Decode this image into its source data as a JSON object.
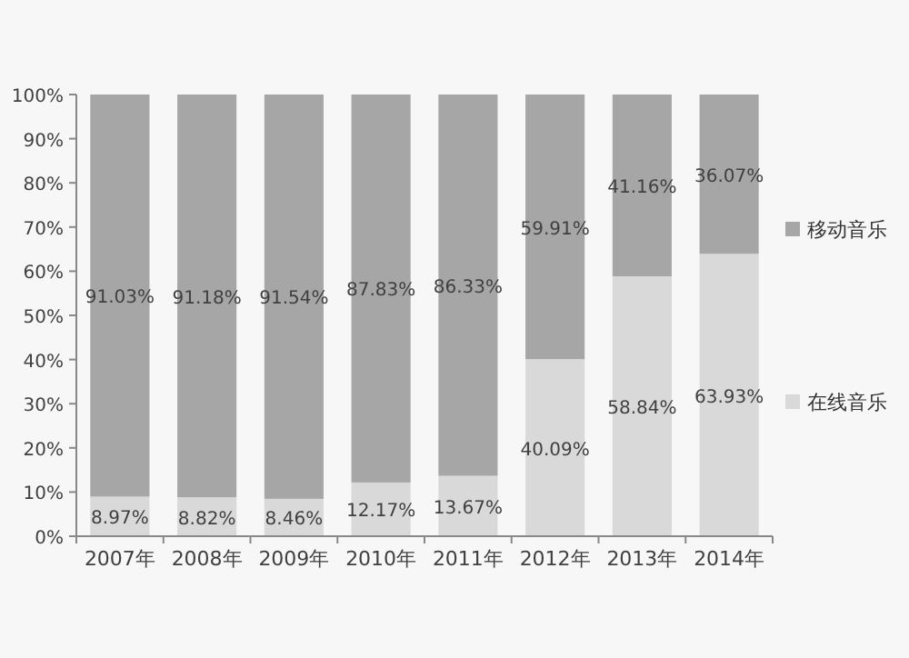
{
  "chart_data": {
    "type": "bar",
    "stacked": true,
    "categories": [
      "2007年",
      "2008年",
      "2009年",
      "2010年",
      "2011年",
      "2012年",
      "2013年",
      "2014年"
    ],
    "series": [
      {
        "name": "在线音乐",
        "color": "#d9d9d9",
        "values": [
          8.97,
          8.82,
          8.46,
          12.17,
          13.67,
          40.09,
          58.84,
          63.93
        ],
        "value_labels": [
          "8.97%",
          "8.82%",
          "8.46%",
          "12.17%",
          "13.67%",
          "40.09%",
          "58.84%",
          "63.93%"
        ]
      },
      {
        "name": "移动音乐",
        "color": "#a6a6a6",
        "values": [
          91.03,
          91.18,
          91.54,
          87.83,
          86.33,
          59.91,
          41.16,
          36.07
        ],
        "value_labels": [
          "91.03%",
          "91.18%",
          "91.54%",
          "87.83%",
          "86.33%",
          "59.91%",
          "41.16%",
          "36.07%"
        ]
      }
    ],
    "ylim": [
      0,
      100
    ],
    "yticks": [
      {
        "value": 0,
        "label": "0%"
      },
      {
        "value": 10,
        "label": "10%"
      },
      {
        "value": 20,
        "label": "20%"
      },
      {
        "value": 30,
        "label": "30%"
      },
      {
        "value": 40,
        "label": "40%"
      },
      {
        "value": 50,
        "label": "50%"
      },
      {
        "value": 60,
        "label": "60%"
      },
      {
        "value": 70,
        "label": "70%"
      },
      {
        "value": 80,
        "label": "80%"
      },
      {
        "value": 90,
        "label": "90%"
      },
      {
        "value": 100,
        "label": "100%"
      }
    ],
    "legend": "right"
  }
}
